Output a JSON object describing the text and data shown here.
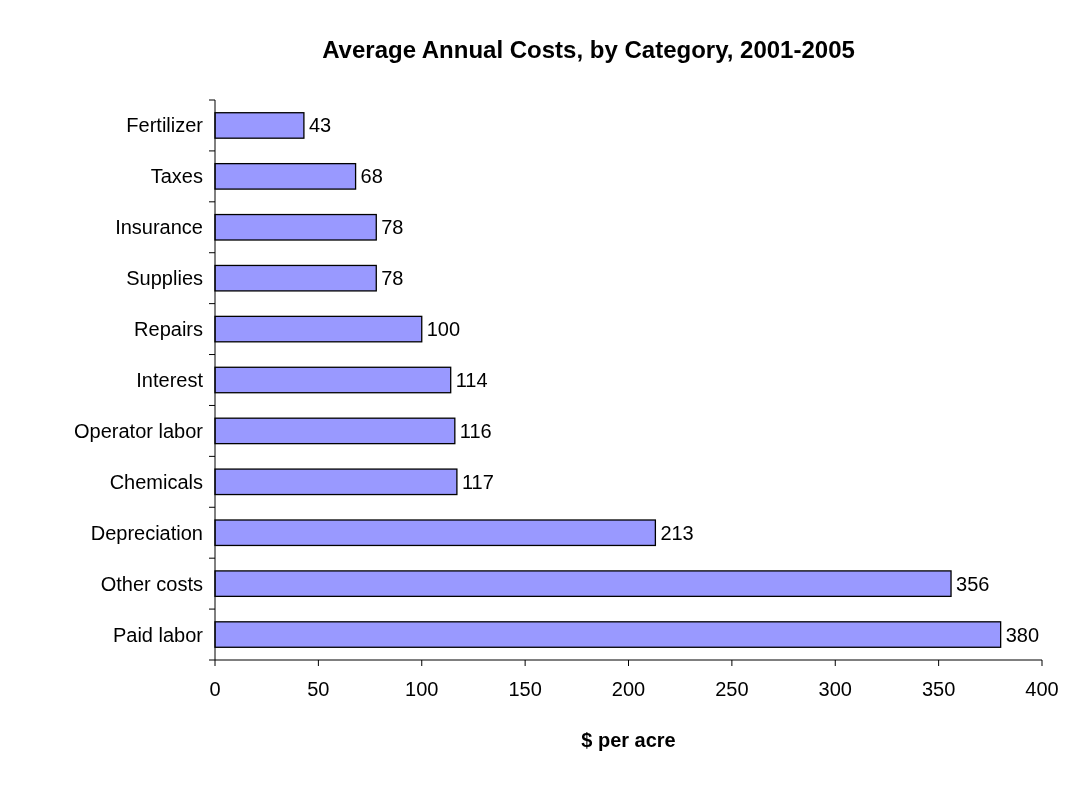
{
  "chart_data": {
    "type": "bar",
    "orientation": "horizontal",
    "title": "Average Annual Costs, by Category, 2001-2005",
    "xlabel": "$ per acre",
    "categories": [
      "Fertilizer",
      "Taxes",
      "Insurance",
      "Supplies",
      "Repairs",
      "Interest",
      "Operator labor",
      "Chemicals",
      "Depreciation",
      "Other costs",
      "Paid labor"
    ],
    "values": [
      43,
      68,
      78,
      78,
      100,
      114,
      116,
      117,
      213,
      356,
      380
    ],
    "color": "#9999ff",
    "xlim": [
      0,
      400
    ],
    "xticks": [
      0,
      50,
      100,
      150,
      200,
      250,
      300,
      350,
      400
    ],
    "data_labels": true,
    "grid": false
  }
}
